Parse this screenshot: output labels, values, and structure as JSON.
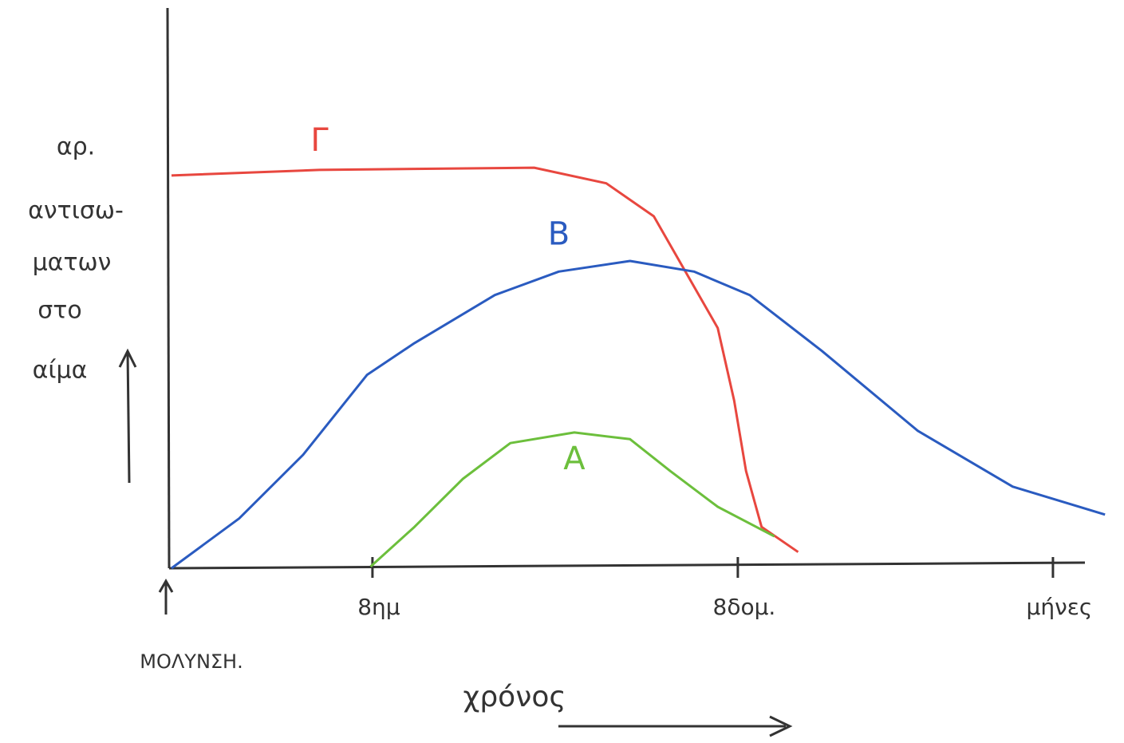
{
  "chart_data": {
    "type": "line",
    "y_label_lines": [
      "αρ.",
      "αντισω-",
      "ματων",
      "στο",
      "αίμα"
    ],
    "x_label": "χρόνος",
    "origin_label": "ΜΟΛΥΝΣΗ.",
    "xlim": [
      0,
      103
    ],
    "ylim": [
      0,
      100
    ],
    "xticks": [
      {
        "value": 22,
        "label": "8ημ"
      },
      {
        "value": 62,
        "label": "8δομ."
      },
      {
        "value": 96.5,
        "label": "μήνες"
      }
    ],
    "series": [
      {
        "name": "Γ",
        "color": "#e8473f",
        "x": [
          0,
          16.2,
          39.7,
          47.6,
          52.8,
          56.3,
          59.8,
          61.6,
          62.9,
          64.6,
          68.6
        ],
        "values": [
          70.3,
          71.3,
          71.7,
          68.9,
          63,
          53,
          43,
          30,
          17.4,
          7.4,
          2.9
        ]
      },
      {
        "name": "B",
        "color": "#2a5bc0",
        "x": [
          0,
          7.4,
          14.4,
          21.4,
          26.6,
          35.4,
          42.4,
          50.2,
          57.2,
          63.3,
          71.2,
          81.7,
          92.1,
          102.2
        ],
        "values": [
          0,
          8.9,
          20.3,
          34.6,
          40.3,
          48.9,
          53.1,
          55,
          53.1,
          48.9,
          38.9,
          24.6,
          14.6,
          9.6
        ]
      },
      {
        "name": "A",
        "color": "#6cbf3c",
        "x": [
          21.8,
          26.6,
          31.9,
          37.1,
          44.1,
          50.2,
          54.6,
          59.8,
          66
        ],
        "values": [
          0.3,
          7.4,
          16,
          22.4,
          24.3,
          23.1,
          17.4,
          11,
          5.7
        ]
      }
    ]
  }
}
